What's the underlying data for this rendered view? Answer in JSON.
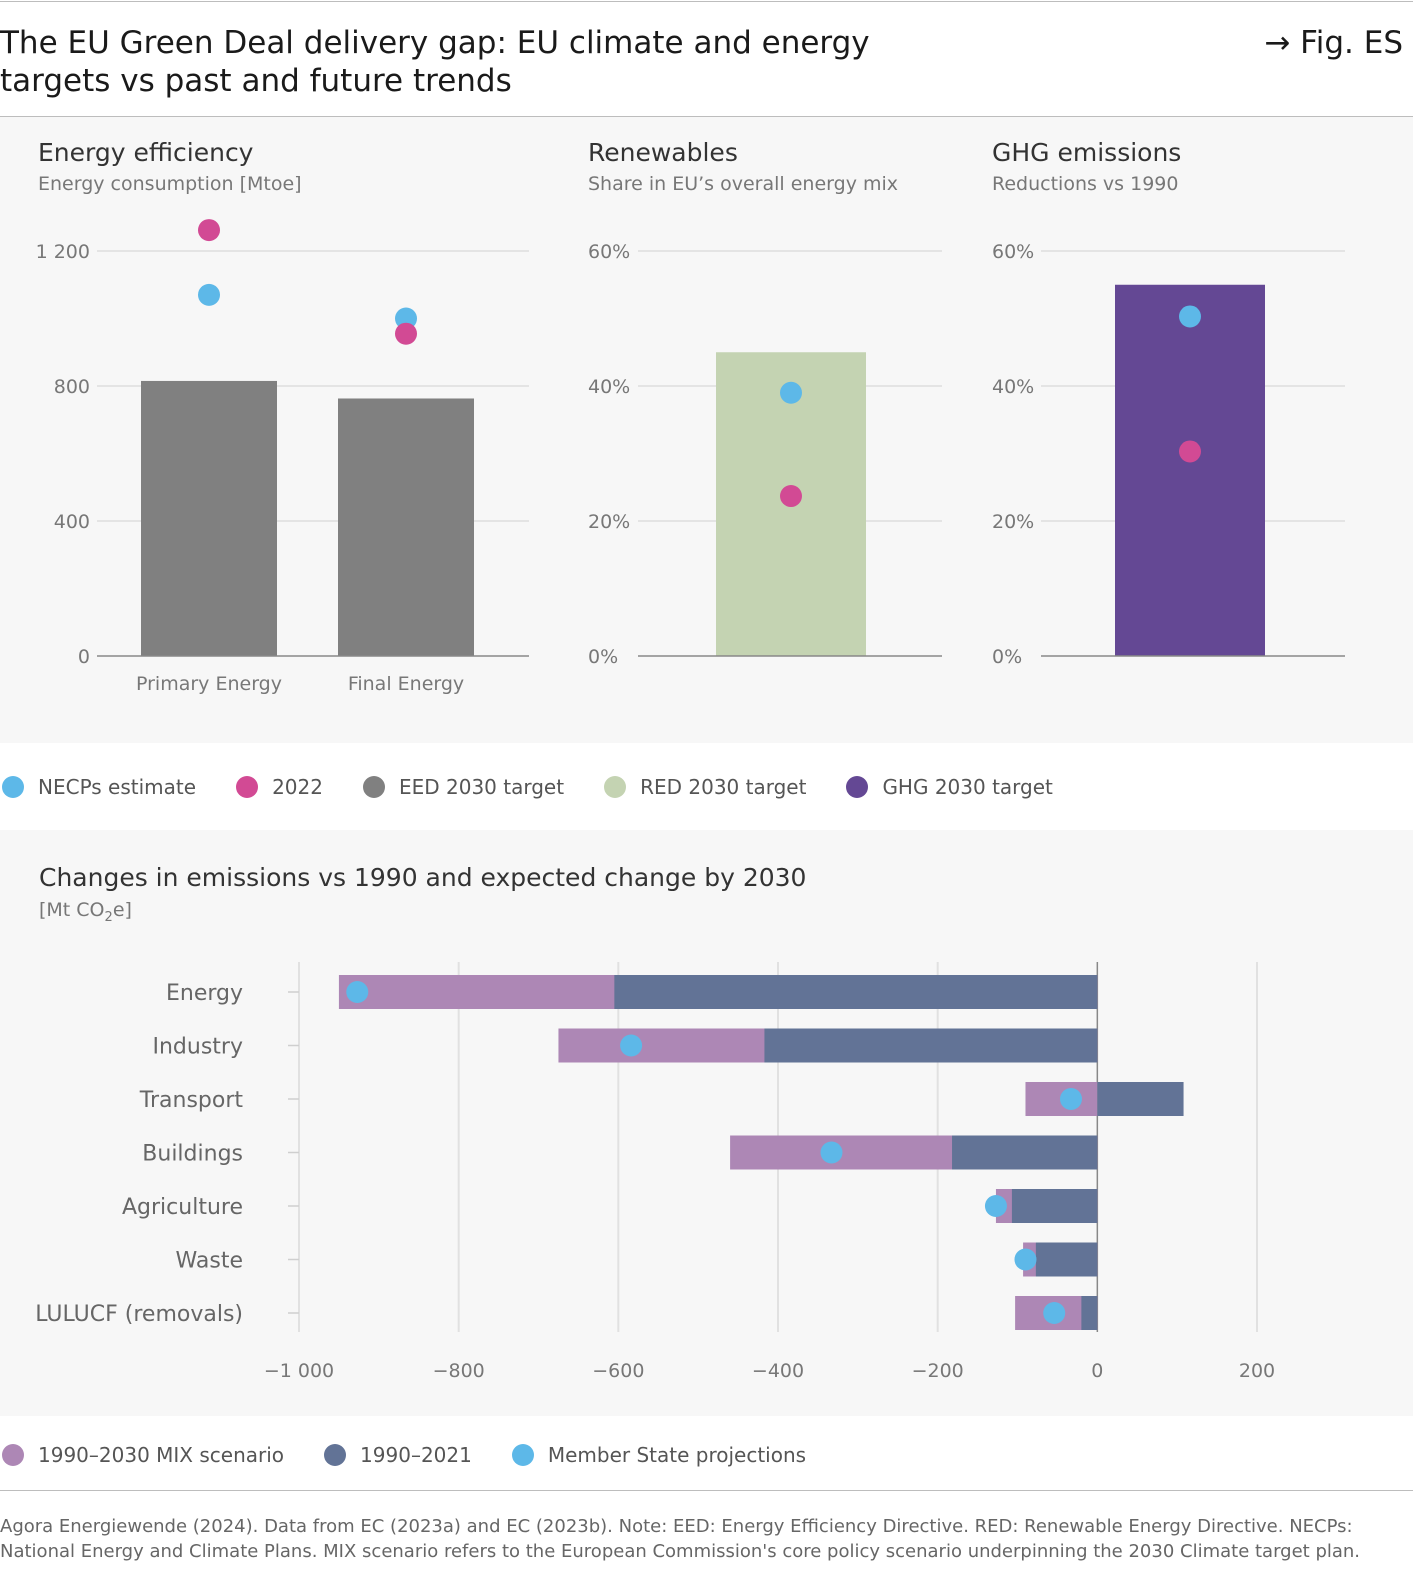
{
  "header": {
    "title": "The EU Green Deal delivery gap: EU climate and energy targets vs past and future trends",
    "figure_label": "→ Fig. ES"
  },
  "colors": {
    "necp": "#5db8e8",
    "y2022": "#d24a94",
    "eed": "#808080",
    "red": "#c4d3b2",
    "ghg": "#644894",
    "mix": "#ad87b5",
    "hist": "#627396",
    "msproj": "#5db8e8"
  },
  "chart_data": [
    {
      "type": "bar",
      "title": "Energy efficiency",
      "subtitle": "Energy consumption [Mtoe]",
      "categories": [
        "Primary Energy",
        "Final Energy"
      ],
      "y_ticks": [
        "0",
        "400",
        "800",
        "1 200"
      ],
      "ylim": [
        0,
        1200
      ],
      "series": [
        {
          "name": "EED 2030 target",
          "values": [
            815,
            763
          ]
        },
        {
          "name": "NECPs estimate",
          "values": [
            1070,
            1000
          ]
        },
        {
          "name": "2022",
          "values": [
            1262,
            955
          ]
        }
      ]
    },
    {
      "type": "bar",
      "title": "Renewables",
      "subtitle": "Share in EU’s overall energy mix",
      "categories": [
        ""
      ],
      "y_ticks": [
        "0%",
        "20%",
        "40%",
        "60%"
      ],
      "ylim": [
        0,
        60
      ],
      "series": [
        {
          "name": "RED 2030 target",
          "values": [
            45
          ]
        },
        {
          "name": "NECPs estimate",
          "values": [
            39
          ]
        },
        {
          "name": "2022",
          "values": [
            23.7
          ]
        }
      ]
    },
    {
      "type": "bar",
      "title": "GHG emissions",
      "subtitle": "Reductions vs 1990",
      "categories": [
        ""
      ],
      "y_ticks": [
        "0%",
        "20%",
        "40%",
        "60%"
      ],
      "ylim": [
        0,
        60
      ],
      "series": [
        {
          "name": "GHG 2030 target",
          "values": [
            55
          ]
        },
        {
          "name": "NECPs estimate",
          "values": [
            50.3
          ]
        },
        {
          "name": "2022",
          "values": [
            30.3
          ]
        }
      ]
    },
    {
      "type": "bar",
      "orientation": "horizontal",
      "title": "Changes in emissions vs 1990 and expected change by 2030",
      "unit_prefix": "[Mt CO",
      "unit_sub": "2",
      "unit_suffix": "e]",
      "categories": [
        "Energy",
        "Industry",
        "Transport",
        "Buildings",
        "Agriculture",
        "Waste",
        "LULUCF (removals)"
      ],
      "x_ticks": [
        "−1 000",
        "−800",
        "−600",
        "−400",
        "−200",
        "0",
        "200"
      ],
      "xlim": [
        -1000,
        200
      ],
      "series": [
        {
          "name": "1990–2030 MIX scenario",
          "values": [
            -950,
            -675,
            -90,
            -460,
            -127,
            -93,
            -103
          ]
        },
        {
          "name": "1990–2021",
          "values": [
            -605,
            -417,
            108,
            -182,
            -107,
            -77,
            -20
          ]
        },
        {
          "name": "Member State projections",
          "values": [
            -927,
            -584,
            -33,
            -333,
            -127,
            -90,
            -54
          ]
        }
      ]
    }
  ],
  "legend_top": [
    {
      "label": "NECPs estimate",
      "color": "#5db8e8"
    },
    {
      "label": "2022",
      "color": "#d24a94"
    },
    {
      "label": "EED 2030 target",
      "color": "#808080"
    },
    {
      "label": "RED 2030 target",
      "color": "#c4d3b2"
    },
    {
      "label": "GHG 2030 target",
      "color": "#644894"
    }
  ],
  "legend_bottom": [
    {
      "label": "1990–2030 MIX scenario",
      "color": "#ad87b5"
    },
    {
      "label": "1990–2021",
      "color": "#627396"
    },
    {
      "label": "Member State projections",
      "color": "#5db8e8"
    }
  ],
  "footer": {
    "note": "Agora Energiewende (2024). Data from EC (2023a) and EC (2023b). Note: EED: Energy Efficiency Directive. RED: Renewable Energy Directive. NECPs: National Energy and Climate Plans. MIX scenario refers to the European Commission's core policy scenario underpinning the 2030 Climate target plan."
  }
}
